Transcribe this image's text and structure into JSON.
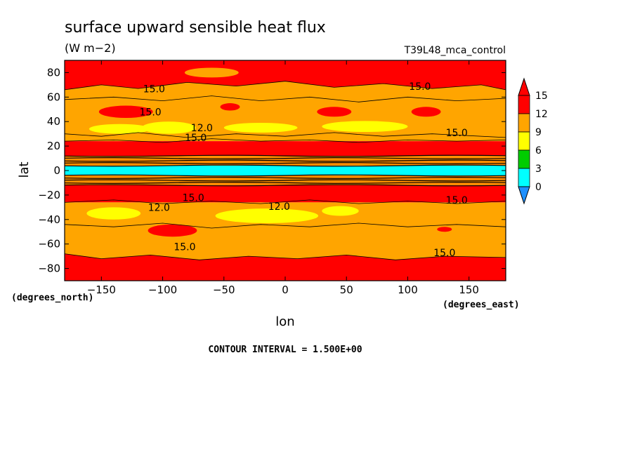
{
  "chart_data": {
    "type": "heatmap",
    "title": "surface upward sensible heat flux",
    "units": "(W m−2)",
    "experiment": "T39L48_mca_control",
    "xlabel": "lon",
    "ylabel": "lat",
    "x_units_label": "(degrees_east)",
    "y_units_label": "(degrees_north)",
    "xlim": [
      -180,
      180
    ],
    "ylim": [
      -90,
      90
    ],
    "x_ticks": [
      -150,
      -100,
      -50,
      0,
      50,
      100,
      150
    ],
    "y_ticks": [
      80,
      60,
      40,
      20,
      0,
      -20,
      -40,
      -60,
      -80
    ],
    "contour_interval_text": "CONTOUR INTERVAL = 1.500E+00",
    "colorbar": {
      "levels": [
        0,
        3,
        6,
        9,
        12,
        15
      ],
      "colors": [
        "#1e90ff",
        "#00ffff",
        "#00cd00",
        "#ffff00",
        "#ffa500",
        "#ff0000"
      ],
      "extend": "both"
    },
    "fields": [
      {
        "name": "red",
        "value_range": ">15",
        "color": "#ff0000"
      },
      {
        "name": "orange",
        "value_range": "12-15",
        "color": "#ffa500"
      },
      {
        "name": "yellow",
        "value_range": "9-12",
        "color": "#ffff00"
      },
      {
        "name": "cyan",
        "value_range": "3-6",
        "color": "#00ffff"
      }
    ],
    "contour_labels": [
      {
        "text": "15.0",
        "lon": -107,
        "lat": 64
      },
      {
        "text": "15.0",
        "lon": -110,
        "lat": 45
      },
      {
        "text": "12.0",
        "lon": -68,
        "lat": 32
      },
      {
        "text": "15.0",
        "lon": -73,
        "lat": 24
      },
      {
        "text": "15.0",
        "lon": 110,
        "lat": 66
      },
      {
        "text": "15.0",
        "lon": 140,
        "lat": 28
      },
      {
        "text": "15.0",
        "lon": -75,
        "lat": -25
      },
      {
        "text": "12.0",
        "lon": -103,
        "lat": -33
      },
      {
        "text": "12.0",
        "lon": -5,
        "lat": -32
      },
      {
        "text": "15.0",
        "lon": 140,
        "lat": -27
      },
      {
        "text": "15.0",
        "lon": -82,
        "lat": -65
      },
      {
        "text": "15.0",
        "lon": 130,
        "lat": -70
      }
    ]
  }
}
